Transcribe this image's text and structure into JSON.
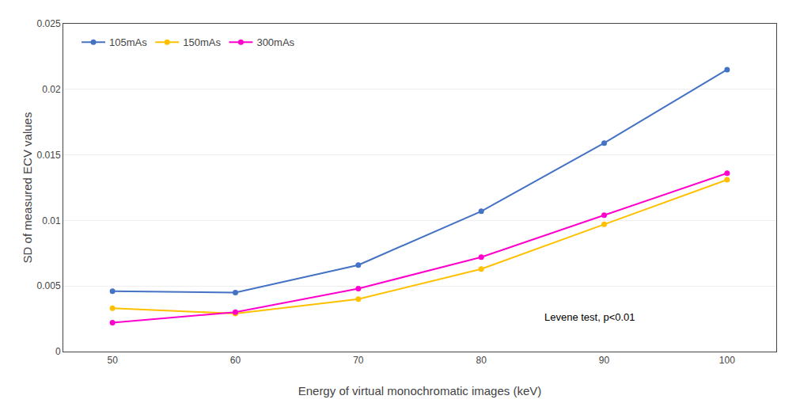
{
  "chart_data": {
    "type": "line",
    "x": [
      50,
      60,
      70,
      80,
      90,
      100
    ],
    "series": [
      {
        "name": "105mAs",
        "color": "#4472C4",
        "values": [
          0.0046,
          0.0045,
          0.0066,
          0.0107,
          0.0159,
          0.0215
        ]
      },
      {
        "name": "150mAs",
        "color": "#FFC000",
        "values": [
          0.0033,
          0.0029,
          0.004,
          0.0063,
          0.0097,
          0.0131
        ]
      },
      {
        "name": "300mAs",
        "color": "#FF00CC",
        "values": [
          0.0022,
          0.003,
          0.0048,
          0.0072,
          0.0104,
          0.0136
        ]
      }
    ],
    "x_label": "Energy of virtual monochromatic images (keV)",
    "y_label": "SD of measured ECV values",
    "xlim": [
      46,
      104
    ],
    "xticks": [
      50,
      60,
      70,
      80,
      90,
      100
    ],
    "ylim": [
      0,
      0.025
    ],
    "yticks": [
      0,
      0.005,
      0.01,
      0.015,
      0.02,
      0.025
    ],
    "annotations": [
      {
        "text": "Levene test, p<0.01",
        "x": 85,
        "y": 0.0032
      }
    ],
    "marker": "circle",
    "grid": "y",
    "legend": "upper left"
  }
}
